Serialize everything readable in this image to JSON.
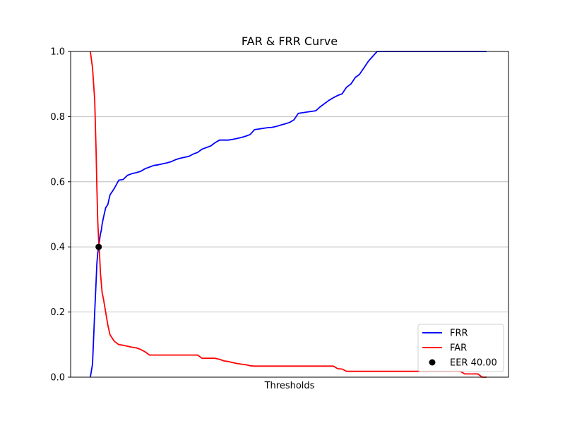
{
  "chart_data": {
    "type": "line",
    "title": "FAR & FRR Curve",
    "xlabel": "Thresholds",
    "ylabel": "",
    "xlim": [
      0,
      1
    ],
    "ylim": [
      0,
      1
    ],
    "yticks": [
      "0.0",
      "0.2",
      "0.4",
      "0.6",
      "0.8",
      "1.0"
    ],
    "grid": "horizontal",
    "legend_position": "lower-right",
    "series": [
      {
        "name": "FRR",
        "color": "#0000ff",
        "x": [
          0.045,
          0.05,
          0.055,
          0.058,
          0.06,
          0.062,
          0.064,
          0.066,
          0.068,
          0.07,
          0.072,
          0.075,
          0.08,
          0.085,
          0.09,
          0.095,
          0.1,
          0.11,
          0.12,
          0.13,
          0.14,
          0.15,
          0.16,
          0.17,
          0.18,
          0.19,
          0.2,
          0.21,
          0.22,
          0.23,
          0.24,
          0.25,
          0.26,
          0.27,
          0.28,
          0.29,
          0.3,
          0.31,
          0.32,
          0.33,
          0.34,
          0.35,
          0.36,
          0.37,
          0.38,
          0.39,
          0.4,
          0.41,
          0.42,
          0.43,
          0.44,
          0.45,
          0.46,
          0.47,
          0.48,
          0.49,
          0.5,
          0.51,
          0.52,
          0.53,
          0.54,
          0.55,
          0.56,
          0.57,
          0.58,
          0.59,
          0.6,
          0.61,
          0.62,
          0.63,
          0.64,
          0.65,
          0.66,
          0.67,
          0.68,
          0.69,
          0.7,
          0.71,
          0.72,
          0.73,
          0.74,
          0.75,
          0.76,
          0.77,
          0.78,
          0.79,
          0.8,
          0.81,
          0.82,
          0.83,
          0.84,
          0.85,
          0.86,
          0.87,
          0.88,
          0.89,
          0.9,
          0.91,
          0.92,
          0.93,
          0.94,
          0.95
        ],
        "y": [
          0.0,
          0.04,
          0.2,
          0.29,
          0.35,
          0.38,
          0.4,
          0.42,
          0.44,
          0.45,
          0.47,
          0.49,
          0.52,
          0.53,
          0.56,
          0.57,
          0.58,
          0.605,
          0.607,
          0.62,
          0.625,
          0.628,
          0.632,
          0.64,
          0.645,
          0.65,
          0.652,
          0.655,
          0.658,
          0.662,
          0.668,
          0.672,
          0.675,
          0.678,
          0.685,
          0.69,
          0.7,
          0.705,
          0.71,
          0.72,
          0.728,
          0.728,
          0.728,
          0.73,
          0.733,
          0.736,
          0.74,
          0.745,
          0.76,
          0.762,
          0.764,
          0.766,
          0.767,
          0.77,
          0.774,
          0.778,
          0.782,
          0.79,
          0.81,
          0.812,
          0.814,
          0.816,
          0.818,
          0.83,
          0.84,
          0.85,
          0.858,
          0.865,
          0.87,
          0.89,
          0.9,
          0.92,
          0.93,
          0.95,
          0.97,
          0.985,
          1.0,
          1.0,
          1.0,
          1.0,
          1.0,
          1.0,
          1.0,
          1.0,
          1.0,
          1.0,
          1.0,
          1.0,
          1.0,
          1.0,
          1.0,
          1.0,
          1.0,
          1.0,
          1.0,
          1.0,
          1.0,
          1.0,
          1.0,
          1.0,
          1.0,
          1.0
        ]
      },
      {
        "name": "FAR",
        "color": "#ff0000",
        "x": [
          0.045,
          0.05,
          0.055,
          0.058,
          0.06,
          0.062,
          0.064,
          0.066,
          0.068,
          0.07,
          0.072,
          0.075,
          0.08,
          0.085,
          0.09,
          0.095,
          0.1,
          0.11,
          0.12,
          0.13,
          0.14,
          0.15,
          0.16,
          0.17,
          0.18,
          0.19,
          0.2,
          0.21,
          0.22,
          0.23,
          0.24,
          0.25,
          0.26,
          0.27,
          0.28,
          0.29,
          0.3,
          0.31,
          0.32,
          0.33,
          0.34,
          0.35,
          0.36,
          0.37,
          0.38,
          0.39,
          0.4,
          0.41,
          0.42,
          0.43,
          0.44,
          0.45,
          0.46,
          0.47,
          0.48,
          0.49,
          0.5,
          0.51,
          0.52,
          0.53,
          0.54,
          0.55,
          0.56,
          0.57,
          0.58,
          0.59,
          0.6,
          0.61,
          0.62,
          0.63,
          0.64,
          0.65,
          0.66,
          0.67,
          0.68,
          0.69,
          0.7,
          0.71,
          0.72,
          0.73,
          0.74,
          0.75,
          0.76,
          0.77,
          0.78,
          0.79,
          0.8,
          0.81,
          0.82,
          0.83,
          0.84,
          0.85,
          0.86,
          0.87,
          0.88,
          0.89,
          0.9,
          0.91,
          0.92,
          0.93,
          0.94,
          0.95
        ],
        "y": [
          1.0,
          0.95,
          0.85,
          0.7,
          0.58,
          0.48,
          0.42,
          0.38,
          0.32,
          0.29,
          0.26,
          0.24,
          0.2,
          0.16,
          0.13,
          0.12,
          0.11,
          0.1,
          0.098,
          0.095,
          0.092,
          0.09,
          0.085,
          0.078,
          0.068,
          0.068,
          0.068,
          0.068,
          0.068,
          0.068,
          0.068,
          0.068,
          0.068,
          0.068,
          0.068,
          0.068,
          0.058,
          0.058,
          0.058,
          0.058,
          0.055,
          0.05,
          0.048,
          0.045,
          0.042,
          0.04,
          0.038,
          0.035,
          0.034,
          0.034,
          0.034,
          0.034,
          0.034,
          0.034,
          0.034,
          0.034,
          0.034,
          0.034,
          0.034,
          0.034,
          0.034,
          0.034,
          0.034,
          0.034,
          0.034,
          0.034,
          0.034,
          0.026,
          0.025,
          0.018,
          0.018,
          0.018,
          0.018,
          0.018,
          0.018,
          0.018,
          0.018,
          0.018,
          0.018,
          0.018,
          0.018,
          0.018,
          0.018,
          0.018,
          0.018,
          0.018,
          0.018,
          0.018,
          0.018,
          0.018,
          0.018,
          0.018,
          0.018,
          0.018,
          0.018,
          0.018,
          0.01,
          0.01,
          0.01,
          0.01,
          0.0,
          0.0
        ]
      }
    ],
    "eer_point": {
      "label": "EER 40.00",
      "x": 0.064,
      "y": 0.4,
      "color": "#000000"
    }
  }
}
